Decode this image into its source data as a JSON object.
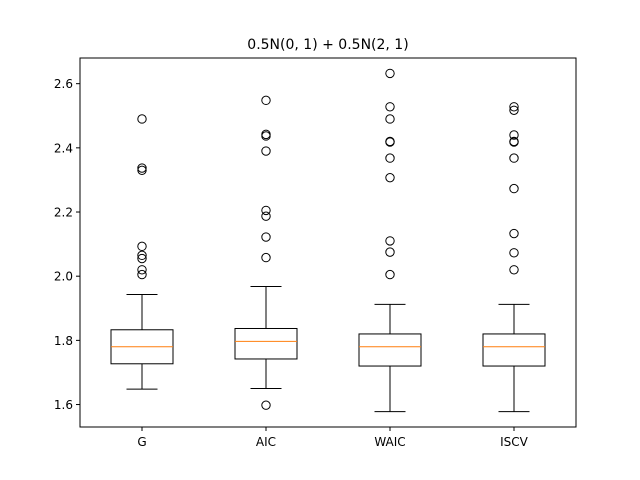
{
  "chart_data": {
    "type": "box",
    "title": "0.5N(0, 1) + 0.5N(2, 1)",
    "xlabel": "",
    "ylabel": "",
    "ylim": [
      1.53,
      2.68
    ],
    "yticks": [
      1.6,
      1.8,
      2.0,
      2.2,
      2.4,
      2.6
    ],
    "ytick_labels": [
      "1.6",
      "1.8",
      "2.0",
      "2.2",
      "2.4",
      "2.6"
    ],
    "grid": false,
    "categories": [
      "G",
      "AIC",
      "WAIC",
      "ISCV"
    ],
    "boxes": [
      {
        "label": "G",
        "whisker_low": 1.648,
        "q1": 1.727,
        "median": 1.78,
        "q3": 1.833,
        "whisker_high": 1.943,
        "outliers": [
          2.005,
          2.02,
          2.055,
          2.065,
          2.093,
          2.33,
          2.337,
          2.49
        ]
      },
      {
        "label": "AIC",
        "whisker_low": 1.65,
        "q1": 1.742,
        "median": 1.797,
        "q3": 1.837,
        "whisker_high": 1.968,
        "outliers": [
          1.598,
          2.058,
          2.122,
          2.187,
          2.205,
          2.39,
          2.437,
          2.442,
          2.548
        ]
      },
      {
        "label": "WAIC",
        "whisker_low": 1.578,
        "q1": 1.72,
        "median": 1.78,
        "q3": 1.82,
        "whisker_high": 1.912,
        "outliers": [
          2.005,
          2.075,
          2.11,
          2.307,
          2.368,
          2.418,
          2.42,
          2.49,
          2.528,
          2.632
        ]
      },
      {
        "label": "ISCV",
        "whisker_low": 1.578,
        "q1": 1.72,
        "median": 1.78,
        "q3": 1.82,
        "whisker_high": 1.912,
        "outliers": [
          2.02,
          2.073,
          2.133,
          2.273,
          2.368,
          2.418,
          2.42,
          2.44,
          2.517,
          2.528
        ]
      }
    ],
    "colors": {
      "box": "#000000",
      "median": "#ff7f0e",
      "outlier": "#000000",
      "axes": "#000000"
    }
  }
}
